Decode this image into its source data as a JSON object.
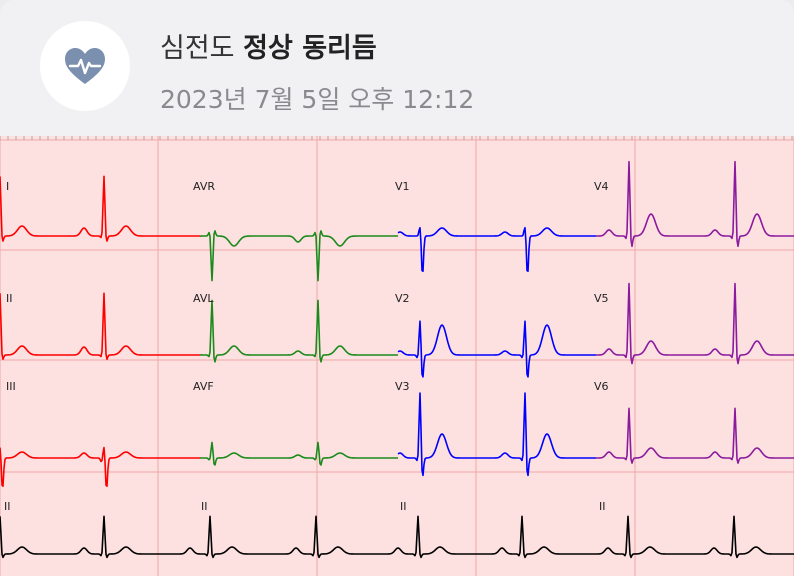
{
  "header": {
    "title_prefix": "심전도",
    "title_result": "정상 동리듬",
    "date": "2023년 7월 5일 오후 12:12",
    "icon": "heart-pulse-icon",
    "icon_color": "#7b8faf"
  },
  "ecg": {
    "grid_bg": "#fde0e0",
    "grid_line": "#f0a7a7",
    "leads": [
      {
        "label": "I",
        "color": "#ff0000"
      },
      {
        "label": "AVR",
        "color": "#1a8a1a"
      },
      {
        "label": "V1",
        "color": "#0000ff"
      },
      {
        "label": "V4",
        "color": "#8b1a9e"
      },
      {
        "label": "II",
        "color": "#ff0000"
      },
      {
        "label": "AVL",
        "color": "#1a8a1a"
      },
      {
        "label": "V2",
        "color": "#0000ff"
      },
      {
        "label": "V5",
        "color": "#8b1a9e"
      },
      {
        "label": "III",
        "color": "#ff0000"
      },
      {
        "label": "AVF",
        "color": "#1a8a1a"
      },
      {
        "label": "V3",
        "color": "#0000ff"
      },
      {
        "label": "V6",
        "color": "#8b1a9e"
      }
    ],
    "rhythm_labels": [
      "II",
      "II",
      "II",
      "II"
    ],
    "rhythm_color": "#000000"
  }
}
